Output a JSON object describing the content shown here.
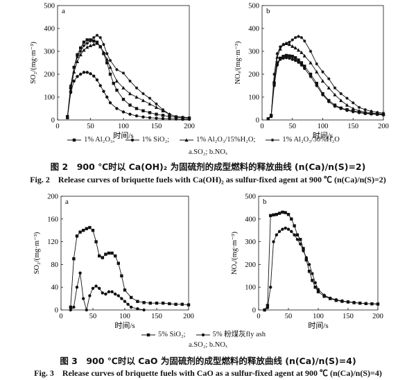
{
  "fig2": {
    "caption_cn": "图 2　900 ℃时以 Ca(OH)₂ 为固硫剂的成型燃料的释放曲线 (n(Ca)/n(S)=2)",
    "caption_en": "Fig. 2　Release curves of briquette fuels with Ca(OH)₂ as sulfur-fixed agent at 900 ℃ (n(Ca)/n(S)=2)",
    "legend": [
      "1% Al₂O₃;",
      "1% SiO₂;",
      "1% Al₂O₃/15%H₂O;",
      "1% Al₂O₃/30%H₂O"
    ],
    "subcaption": "a.SO₂;  b.NOₓ"
  },
  "fig3": {
    "caption_cn": "图 3　900 ℃时以 CaO 为固硫剂的成型燃料的释放曲线 (n(Ca)/n(S)=4)",
    "caption_en": "Fig. 3　Release curves of briquette fuels with CaO as a sulfur-fixed agent at 900 ℃ (n(Ca)/n(S)=4)",
    "legend": [
      "5% SiO₂;",
      "5% 粉煤灰fly ash"
    ],
    "subcaption": "a.SO₂;  b.NOₓ"
  },
  "chart_data": [
    {
      "type": "line",
      "panel": "a",
      "xlabel": "时间/s",
      "ylabel": "SO₂/(mg·m⁻³)",
      "xlim": [
        0,
        200
      ],
      "ylim": [
        0,
        500
      ],
      "xticks": [
        0,
        50,
        100,
        150,
        200
      ],
      "yticks": [
        0,
        100,
        200,
        300,
        400,
        500
      ],
      "series": [
        {
          "name": "1% Al₂O₃",
          "marker": "square",
          "x": [
            15,
            20,
            25,
            30,
            35,
            40,
            45,
            50,
            55,
            60,
            65,
            70,
            75,
            80,
            85,
            90,
            100,
            110,
            120,
            130,
            140,
            150,
            160,
            170,
            180,
            190,
            200
          ],
          "y": [
            15,
            140,
            230,
            285,
            315,
            340,
            350,
            350,
            345,
            340,
            320,
            290,
            250,
            200,
            160,
            130,
            90,
            65,
            50,
            40,
            32,
            25,
            20,
            15,
            12,
            10,
            8
          ]
        },
        {
          "name": "1% SiO₂",
          "marker": "circle",
          "x": [
            15,
            20,
            25,
            30,
            35,
            40,
            45,
            50,
            55,
            60,
            65,
            70,
            75,
            80,
            90,
            100,
            110,
            120,
            130,
            140,
            150,
            160,
            170,
            180,
            190,
            200
          ],
          "y": [
            10,
            120,
            170,
            190,
            200,
            208,
            208,
            202,
            192,
            175,
            150,
            125,
            100,
            75,
            50,
            35,
            25,
            18,
            13,
            10,
            8,
            6,
            5,
            4,
            3,
            3
          ]
        },
        {
          "name": "1% Al₂O₃/15%H₂O",
          "marker": "triangle",
          "x": [
            15,
            20,
            25,
            30,
            35,
            40,
            45,
            50,
            55,
            60,
            65,
            70,
            75,
            80,
            90,
            100,
            110,
            120,
            130,
            140,
            150,
            160,
            170,
            180,
            190,
            200
          ],
          "y": [
            10,
            130,
            210,
            255,
            285,
            305,
            318,
            325,
            330,
            335,
            320,
            295,
            265,
            230,
            170,
            140,
            115,
            100,
            85,
            70,
            55,
            40,
            25,
            15,
            10,
            8
          ]
        },
        {
          "name": "1% Al₂O₃/30%H₂O",
          "marker": "star",
          "x": [
            15,
            20,
            25,
            30,
            35,
            40,
            45,
            50,
            55,
            60,
            65,
            70,
            75,
            80,
            90,
            100,
            110,
            120,
            130,
            140,
            150,
            160,
            170,
            180,
            190,
            200
          ],
          "y": [
            15,
            150,
            230,
            275,
            300,
            325,
            335,
            345,
            360,
            370,
            360,
            330,
            290,
            260,
            220,
            205,
            170,
            140,
            115,
            95,
            70,
            45,
            25,
            15,
            12,
            10
          ]
        }
      ]
    },
    {
      "type": "line",
      "panel": "b",
      "xlabel": "时间/s",
      "ylabel": "NOₓ/(mg·m⁻³)",
      "xlim": [
        0,
        200
      ],
      "ylim": [
        0,
        500
      ],
      "xticks": [
        0,
        50,
        100,
        150,
        200
      ],
      "yticks": [
        0,
        100,
        200,
        300,
        400,
        500
      ],
      "series": [
        {
          "name": "1% Al₂O₃",
          "marker": "square",
          "x": [
            10,
            15,
            20,
            25,
            30,
            35,
            40,
            45,
            50,
            55,
            60,
            65,
            70,
            80,
            90,
            100,
            110,
            120,
            130,
            140,
            150,
            160,
            170,
            180,
            190,
            200
          ],
          "y": [
            5,
            20,
            160,
            250,
            270,
            278,
            282,
            280,
            278,
            272,
            262,
            250,
            235,
            200,
            160,
            115,
            85,
            65,
            52,
            45,
            40,
            35,
            30,
            28,
            26,
            24
          ]
        },
        {
          "name": "1% SiO₂",
          "marker": "circle",
          "x": [
            10,
            15,
            20,
            25,
            30,
            35,
            40,
            45,
            50,
            55,
            60,
            65,
            70,
            80,
            90,
            100,
            110,
            120,
            130,
            140,
            150,
            160,
            170,
            180,
            190,
            200
          ],
          "y": [
            5,
            15,
            150,
            240,
            265,
            270,
            272,
            270,
            265,
            260,
            252,
            240,
            225,
            190,
            150,
            110,
            80,
            60,
            50,
            42,
            36,
            32,
            28,
            26,
            24,
            22
          ]
        },
        {
          "name": "1% Al₂O₃/15%H₂O",
          "marker": "triangle",
          "x": [
            10,
            15,
            20,
            25,
            30,
            35,
            40,
            45,
            50,
            55,
            60,
            65,
            70,
            80,
            90,
            100,
            110,
            120,
            130,
            140,
            150,
            160,
            170,
            180,
            190,
            200
          ],
          "y": [
            5,
            20,
            170,
            275,
            310,
            330,
            334,
            330,
            322,
            315,
            305,
            295,
            280,
            250,
            210,
            170,
            140,
            110,
            85,
            65,
            50,
            40,
            35,
            30,
            28,
            26
          ]
        },
        {
          "name": "1% Al₂O₃/30%H₂O",
          "marker": "star",
          "x": [
            10,
            15,
            20,
            25,
            30,
            35,
            40,
            45,
            50,
            55,
            60,
            65,
            70,
            80,
            90,
            100,
            110,
            120,
            130,
            140,
            150,
            160,
            170,
            180,
            190,
            200
          ],
          "y": [
            5,
            20,
            200,
            290,
            320,
            330,
            335,
            340,
            350,
            360,
            365,
            360,
            345,
            300,
            245,
            210,
            180,
            140,
            115,
            95,
            75,
            55,
            45,
            38,
            33,
            30
          ]
        }
      ]
    },
    {
      "type": "line",
      "panel": "a",
      "xlabel": "时间/s",
      "ylabel": "SO₂/(mg·m⁻³)",
      "xlim": [
        0,
        200
      ],
      "ylim": [
        0,
        200
      ],
      "xticks": [
        0,
        50,
        100,
        150,
        200
      ],
      "yticks": [
        0,
        40,
        80,
        120,
        160,
        200
      ],
      "series": [
        {
          "name": "5% SiO₂",
          "marker": "square",
          "x": [
            15,
            20,
            25,
            30,
            35,
            40,
            45,
            50,
            55,
            60,
            65,
            70,
            75,
            80,
            85,
            90,
            95,
            100,
            110,
            120,
            130,
            140,
            150,
            160,
            170,
            180,
            190,
            200
          ],
          "y": [
            5,
            90,
            130,
            137,
            140,
            143,
            145,
            140,
            120,
            95,
            92,
            98,
            100,
            100,
            95,
            82,
            60,
            35,
            22,
            15,
            13,
            12,
            12,
            12,
            11,
            10,
            10,
            9
          ]
        },
        {
          "name": "5% 粉煤灰fly ash",
          "marker": "circle",
          "x": [
            15,
            20,
            25,
            30,
            35,
            40,
            45,
            50,
            55,
            60,
            65,
            70,
            75,
            80,
            85,
            90,
            95,
            100,
            105,
            110,
            120,
            130
          ],
          "y": [
            0,
            5,
            40,
            65,
            20,
            0,
            25,
            38,
            42,
            38,
            30,
            28,
            32,
            32,
            28,
            25,
            20,
            15,
            10,
            5,
            2,
            0
          ]
        }
      ]
    },
    {
      "type": "line",
      "panel": "b",
      "xlabel": "时间/s",
      "ylabel": "NOₓ/(mg·m⁻³)",
      "xlim": [
        0,
        200
      ],
      "ylim": [
        0,
        500
      ],
      "xticks": [
        0,
        50,
        100,
        150,
        200
      ],
      "yticks": [
        0,
        100,
        200,
        300,
        400,
        500
      ],
      "series": [
        {
          "name": "5% SiO₂",
          "marker": "square",
          "x": [
            10,
            15,
            20,
            25,
            30,
            35,
            40,
            45,
            50,
            55,
            60,
            65,
            70,
            75,
            80,
            85,
            90,
            95,
            100,
            110,
            120,
            130,
            140,
            150,
            160,
            170,
            180,
            190,
            200
          ],
          "y": [
            0,
            20,
            415,
            418,
            420,
            425,
            430,
            428,
            420,
            400,
            370,
            330,
            310,
            270,
            220,
            170,
            130,
            100,
            80,
            60,
            50,
            42,
            38,
            35,
            32,
            30,
            28,
            27,
            26
          ]
        },
        {
          "name": "5% 粉煤灰fly ash",
          "marker": "circle",
          "x": [
            10,
            15,
            20,
            25,
            30,
            35,
            40,
            45,
            50,
            55,
            60,
            65,
            70,
            75,
            80,
            85,
            90,
            95,
            100,
            110,
            120,
            130,
            140,
            150,
            160,
            170,
            180,
            190,
            200
          ],
          "y": [
            0,
            10,
            100,
            300,
            330,
            345,
            355,
            360,
            355,
            345,
            330,
            310,
            290,
            260,
            230,
            200,
            160,
            120,
            90,
            65,
            52,
            45,
            40,
            36,
            33,
            30,
            28,
            27,
            26
          ]
        }
      ]
    }
  ]
}
